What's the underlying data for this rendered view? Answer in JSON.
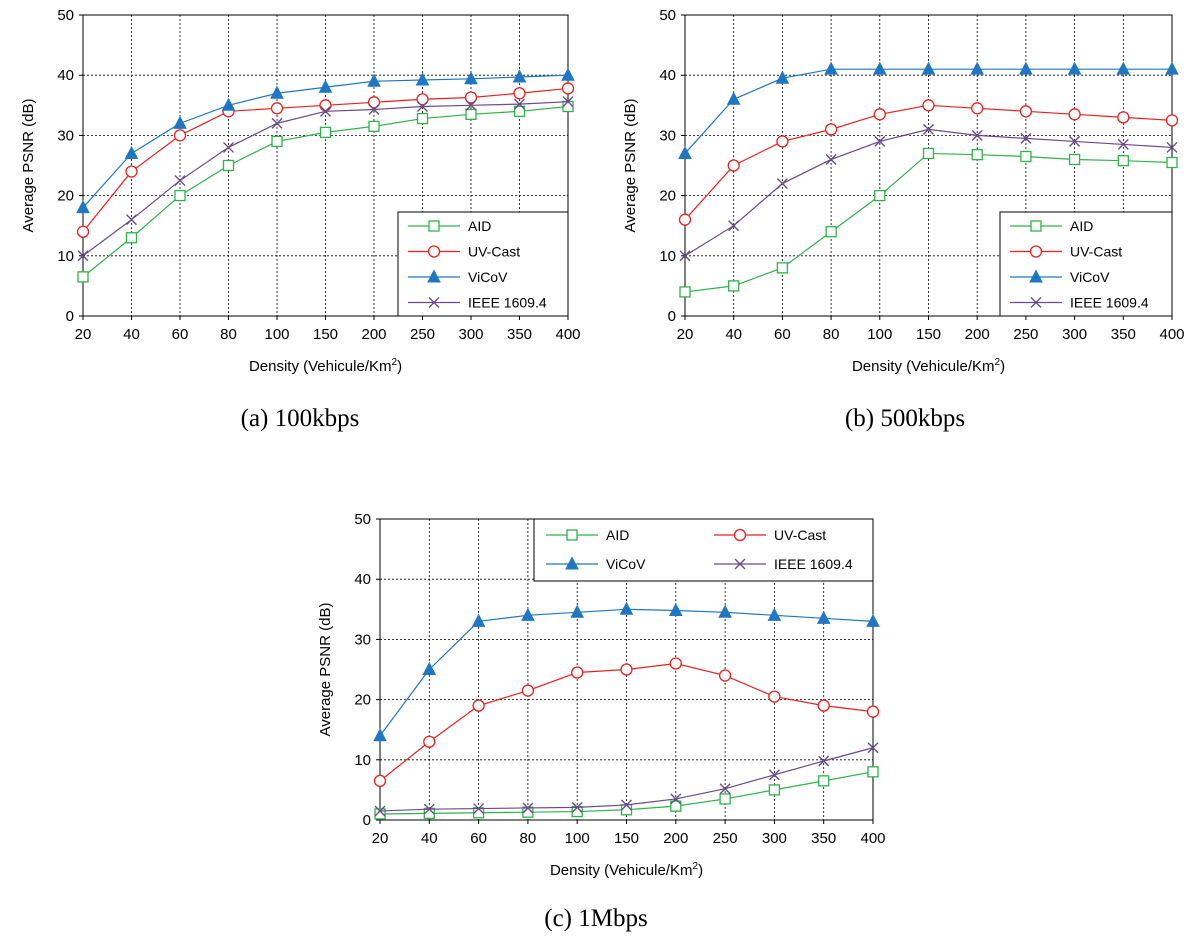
{
  "figure": {
    "charts": [
      {
        "id": "a",
        "type": "line",
        "caption": "(a) 100kbps",
        "xlabel_main": "Density (Vehicule/Km",
        "xlabel_sup": "2",
        "xlabel_end": ")",
        "ylabel": "Average PSNR (dB)",
        "categories": [
          "20",
          "40",
          "60",
          "80",
          "100",
          "150",
          "200",
          "250",
          "300",
          "350",
          "400"
        ],
        "ylim": [
          0,
          50
        ],
        "yticks": [
          "0",
          "10",
          "20",
          "30",
          "40",
          "50"
        ],
        "grid": true,
        "legend_position": "bottom-right",
        "legend_layout": "column",
        "series": [
          {
            "name": "AID",
            "color": "#2db34a",
            "marker": "square-open",
            "values": [
              6.5,
              13,
              20,
              25,
              29,
              30.5,
              31.5,
              32.8,
              33.5,
              34,
              34.8
            ]
          },
          {
            "name": "UV-Cast",
            "color": "#e8211f",
            "marker": "circle-open",
            "values": [
              14,
              24,
              30,
              34,
              34.5,
              35,
              35.5,
              36,
              36.3,
              37,
              37.8
            ]
          },
          {
            "name": "ViCoV",
            "color": "#1f77c4",
            "marker": "triangle-filled",
            "values": [
              18,
              27,
              32,
              35,
              37,
              38,
              39,
              39.2,
              39.4,
              39.7,
              40
            ]
          },
          {
            "name": "IEEE 1609.4",
            "color": "#6a4a8a",
            "marker": "cross",
            "values": [
              10,
              16,
              22.5,
              28,
              32,
              34,
              34.3,
              34.8,
              35,
              35.2,
              35.6
            ]
          }
        ]
      },
      {
        "id": "b",
        "type": "line",
        "caption": "(b) 500kbps",
        "xlabel_main": "Density (Vehicule/Km",
        "xlabel_sup": "2",
        "xlabel_end": ")",
        "ylabel": "Average PSNR (dB)",
        "categories": [
          "20",
          "40",
          "60",
          "80",
          "100",
          "150",
          "200",
          "250",
          "300",
          "350",
          "400"
        ],
        "ylim": [
          0,
          50
        ],
        "yticks": [
          "0",
          "10",
          "20",
          "30",
          "40",
          "50"
        ],
        "grid": true,
        "legend_position": "bottom-right",
        "legend_layout": "column",
        "series": [
          {
            "name": "AID",
            "color": "#2db34a",
            "marker": "square-open",
            "values": [
              4,
              5,
              8,
              14,
              20,
              27,
              26.8,
              26.5,
              26,
              25.8,
              25.5
            ]
          },
          {
            "name": "UV-Cast",
            "color": "#e8211f",
            "marker": "circle-open",
            "values": [
              16,
              25,
              29,
              31,
              33.5,
              35,
              34.5,
              34,
              33.5,
              33,
              32.5
            ]
          },
          {
            "name": "ViCoV",
            "color": "#1f77c4",
            "marker": "triangle-filled",
            "values": [
              27,
              36,
              39.5,
              41,
              41,
              41,
              41,
              41,
              41,
              41,
              41
            ]
          },
          {
            "name": "IEEE 1609.4",
            "color": "#6a4a8a",
            "marker": "cross",
            "values": [
              10,
              15,
              22,
              26,
              29,
              31,
              30,
              29.5,
              29,
              28.5,
              28
            ]
          }
        ]
      },
      {
        "id": "c",
        "type": "line",
        "caption": "(c) 1Mbps",
        "xlabel_main": "Density (Vehicule/Km",
        "xlabel_sup": "2",
        "xlabel_end": ")",
        "ylabel": "Average PSNR (dB)",
        "categories": [
          "20",
          "40",
          "60",
          "80",
          "100",
          "150",
          "200",
          "250",
          "300",
          "350",
          "400"
        ],
        "ylim": [
          0,
          50
        ],
        "yticks": [
          "0",
          "10",
          "20",
          "30",
          "40",
          "50"
        ],
        "grid": true,
        "legend_position": "top",
        "legend_layout": "grid-2x2",
        "series": [
          {
            "name": "AID",
            "color": "#2db34a",
            "marker": "square-open",
            "values": [
              1,
              1.1,
              1.2,
              1.3,
              1.4,
              1.7,
              2.3,
              3.5,
              5,
              6.5,
              8
            ]
          },
          {
            "name": "UV-Cast",
            "color": "#e8211f",
            "marker": "circle-open",
            "values": [
              6.5,
              13,
              19,
              21.5,
              24.5,
              25,
              26,
              24,
              20.5,
              19,
              18
            ]
          },
          {
            "name": "ViCoV",
            "color": "#1f77c4",
            "marker": "triangle-filled",
            "values": [
              14,
              25,
              33,
              34,
              34.5,
              35,
              34.8,
              34.5,
              34,
              33.5,
              33
            ]
          },
          {
            "name": "IEEE 1609.4",
            "color": "#6a4a8a",
            "marker": "cross",
            "values": [
              1.5,
              1.8,
              1.9,
              2,
              2.1,
              2.5,
              3.5,
              5.2,
              7.5,
              9.8,
              12
            ]
          }
        ]
      }
    ]
  }
}
